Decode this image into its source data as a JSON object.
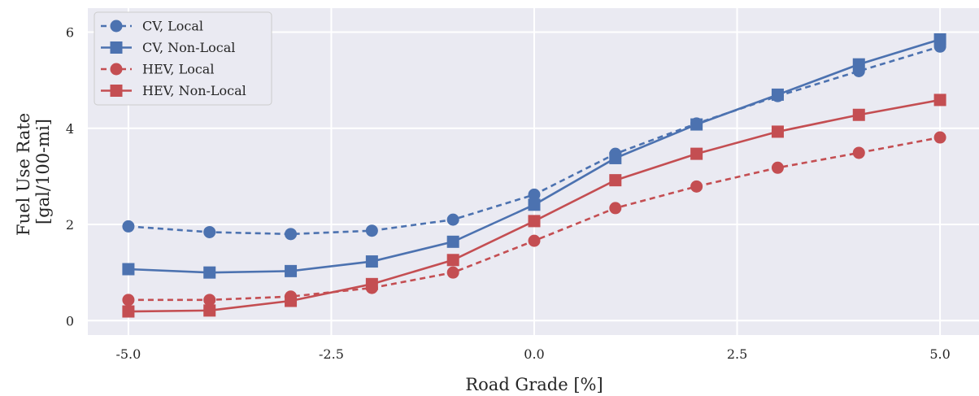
{
  "chart_data": {
    "type": "line",
    "xlabel": "Road Grade [%]",
    "ylabel_lines": [
      "Fuel Use Rate",
      "[gal/100-mi]"
    ],
    "xlim": [
      -5.5,
      5.5
    ],
    "ylim": [
      -0.3,
      6.5
    ],
    "x_ticks": [
      -5.0,
      -2.5,
      0.0,
      2.5,
      5.0
    ],
    "x_tick_labels": [
      "-5.0",
      "-2.5",
      "0.0",
      "2.5",
      "5.0"
    ],
    "y_ticks": [
      0,
      2,
      4,
      6
    ],
    "y_tick_labels": [
      "0",
      "2",
      "4",
      "6"
    ],
    "grid": true,
    "background_color": "#eaeaf2",
    "legend_position": "top-left",
    "x": [
      -5,
      -4,
      -3,
      -2,
      -1,
      0,
      1,
      2,
      3,
      4,
      5
    ],
    "series": [
      {
        "name": "CV, Local",
        "color": "#4c72b0",
        "dashed": true,
        "marker": "circle",
        "values": [
          1.96,
          1.84,
          1.8,
          1.87,
          2.1,
          2.62,
          3.47,
          4.1,
          4.67,
          5.19,
          5.7
        ]
      },
      {
        "name": "CV, Non-Local",
        "color": "#4c72b0",
        "dashed": false,
        "marker": "square",
        "values": [
          1.07,
          1.0,
          1.03,
          1.23,
          1.64,
          2.41,
          3.38,
          4.08,
          4.7,
          5.33,
          5.85
        ]
      },
      {
        "name": "HEV, Local",
        "color": "#c44e52",
        "dashed": true,
        "marker": "circle",
        "values": [
          0.43,
          0.43,
          0.5,
          0.68,
          1.0,
          1.66,
          2.34,
          2.79,
          3.18,
          3.49,
          3.81
        ]
      },
      {
        "name": "HEV, Non-Local",
        "color": "#c44e52",
        "dashed": false,
        "marker": "square",
        "values": [
          0.19,
          0.21,
          0.41,
          0.76,
          1.26,
          2.07,
          2.92,
          3.47,
          3.93,
          4.28,
          4.59
        ]
      }
    ]
  }
}
